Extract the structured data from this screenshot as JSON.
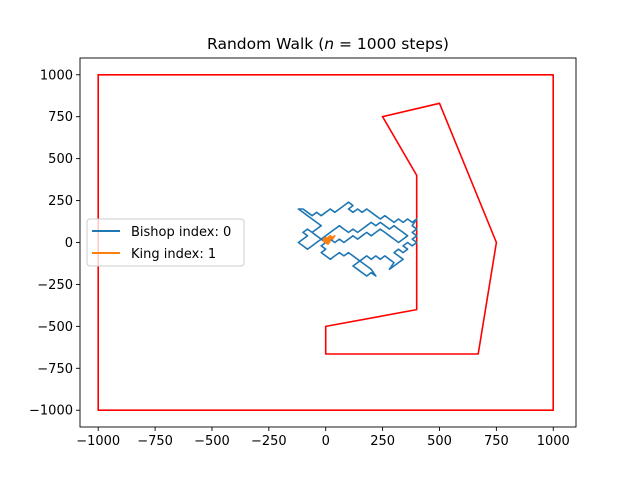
{
  "chart_data": {
    "type": "line",
    "title": "Random Walk (n = 1000 steps)",
    "title_parts": {
      "prefix": "Random Walk (",
      "var": "n",
      "eq": " = 1000 steps)"
    },
    "xlabel": "",
    "ylabel": "",
    "xlim": [
      -1080,
      1100
    ],
    "ylim": [
      -1100,
      1100
    ],
    "xticks": [
      -1000,
      -750,
      -500,
      -250,
      0,
      250,
      500,
      750,
      1000
    ],
    "yticks": [
      -1000,
      -750,
      -500,
      -250,
      0,
      250,
      500,
      750,
      1000
    ],
    "xtick_labels": [
      "−1000",
      "−750",
      "−500",
      "−250",
      "0",
      "250",
      "500",
      "750",
      "1000"
    ],
    "ytick_labels": [
      "−1000",
      "−750",
      "−500",
      "−250",
      "0",
      "250",
      "500",
      "750",
      "1000"
    ],
    "grid": false,
    "legend_position": "center-left",
    "colors": {
      "bishop": "#1f77b4",
      "king": "#ff7f0e",
      "boundary": "#ff0000"
    },
    "boundary": {
      "outer": [
        [
          -1000,
          1000
        ],
        [
          1000,
          1000
        ],
        [
          1000,
          -1000
        ],
        [
          -1000,
          -1000
        ],
        [
          -1000,
          1000
        ]
      ],
      "inner": [
        [
          250,
          750
        ],
        [
          500,
          830
        ],
        [
          750,
          0
        ],
        [
          670,
          -665
        ],
        [
          0,
          -665
        ],
        [
          0,
          -500
        ],
        [
          400,
          -400
        ],
        [
          400,
          400
        ],
        [
          250,
          750
        ]
      ]
    },
    "series": [
      {
        "name": "Bishop index: 0",
        "color": "#1f77b4",
        "points": [
          [
            0,
            0
          ],
          [
            -20,
            20
          ],
          [
            -40,
            40
          ],
          [
            -60,
            60
          ],
          [
            -40,
            80
          ],
          [
            -20,
            100
          ],
          [
            -40,
            120
          ],
          [
            -60,
            140
          ],
          [
            -80,
            160
          ],
          [
            -100,
            180
          ],
          [
            -120,
            200
          ],
          [
            -100,
            200
          ],
          [
            -80,
            180
          ],
          [
            -60,
            160
          ],
          [
            -40,
            180
          ],
          [
            -20,
            160
          ],
          [
            0,
            180
          ],
          [
            20,
            200
          ],
          [
            40,
            180
          ],
          [
            60,
            200
          ],
          [
            80,
            220
          ],
          [
            100,
            240
          ],
          [
            120,
            220
          ],
          [
            100,
            200
          ],
          [
            120,
            180
          ],
          [
            140,
            200
          ],
          [
            160,
            180
          ],
          [
            180,
            200
          ],
          [
            200,
            180
          ],
          [
            220,
            160
          ],
          [
            240,
            140
          ],
          [
            260,
            160
          ],
          [
            280,
            140
          ],
          [
            300,
            120
          ],
          [
            320,
            140
          ],
          [
            340,
            120
          ],
          [
            360,
            140
          ],
          [
            380,
            120
          ],
          [
            400,
            140
          ],
          [
            380,
            100
          ],
          [
            400,
            80
          ],
          [
            380,
            60
          ],
          [
            400,
            40
          ],
          [
            380,
            20
          ],
          [
            400,
            0
          ],
          [
            380,
            -20
          ],
          [
            360,
            0
          ],
          [
            340,
            -20
          ],
          [
            360,
            -40
          ],
          [
            340,
            -60
          ],
          [
            320,
            -40
          ],
          [
            300,
            -60
          ],
          [
            320,
            -80
          ],
          [
            340,
            -100
          ],
          [
            320,
            -120
          ],
          [
            300,
            -140
          ],
          [
            280,
            -160
          ],
          [
            300,
            -120
          ],
          [
            280,
            -100
          ],
          [
            260,
            -80
          ],
          [
            240,
            -100
          ],
          [
            220,
            -80
          ],
          [
            200,
            -100
          ],
          [
            180,
            -80
          ],
          [
            160,
            -100
          ],
          [
            140,
            -120
          ],
          [
            120,
            -140
          ],
          [
            140,
            -160
          ],
          [
            160,
            -180
          ],
          [
            180,
            -200
          ],
          [
            200,
            -180
          ],
          [
            220,
            -200
          ],
          [
            200,
            -160
          ],
          [
            180,
            -140
          ],
          [
            160,
            -120
          ],
          [
            140,
            -100
          ],
          [
            120,
            -80
          ],
          [
            100,
            -60
          ],
          [
            80,
            -80
          ],
          [
            60,
            -60
          ],
          [
            40,
            -80
          ],
          [
            20,
            -100
          ],
          [
            0,
            -80
          ],
          [
            -20,
            -60
          ],
          [
            0,
            -40
          ],
          [
            -20,
            -20
          ],
          [
            0,
            0
          ],
          [
            20,
            20
          ],
          [
            40,
            0
          ],
          [
            60,
            20
          ],
          [
            80,
            0
          ],
          [
            100,
            20
          ],
          [
            120,
            40
          ],
          [
            140,
            20
          ],
          [
            160,
            40
          ],
          [
            180,
            60
          ],
          [
            200,
            40
          ],
          [
            220,
            60
          ],
          [
            240,
            80
          ],
          [
            260,
            60
          ],
          [
            280,
            40
          ],
          [
            300,
            20
          ],
          [
            320,
            0
          ],
          [
            340,
            20
          ],
          [
            360,
            40
          ],
          [
            340,
            60
          ],
          [
            320,
            80
          ],
          [
            300,
            100
          ],
          [
            280,
            80
          ],
          [
            260,
            100
          ],
          [
            240,
            120
          ],
          [
            220,
            100
          ],
          [
            200,
            120
          ],
          [
            180,
            100
          ],
          [
            160,
            80
          ],
          [
            140,
            60
          ],
          [
            120,
            80
          ],
          [
            100,
            60
          ],
          [
            80,
            80
          ],
          [
            60,
            100
          ],
          [
            40,
            80
          ],
          [
            20,
            60
          ],
          [
            0,
            40
          ],
          [
            -20,
            20
          ],
          [
            -40,
            0
          ],
          [
            -60,
            -20
          ],
          [
            -80,
            -40
          ],
          [
            -100,
            -20
          ],
          [
            -120,
            0
          ],
          [
            -100,
            20
          ],
          [
            -80,
            40
          ],
          [
            -100,
            60
          ],
          [
            -80,
            80
          ],
          [
            -60,
            60
          ],
          [
            -40,
            40
          ],
          [
            -20,
            20
          ],
          [
            0,
            0
          ]
        ]
      },
      {
        "name": "King index: 1",
        "color": "#ff7f0e",
        "points": [
          [
            0,
            0
          ],
          [
            -10,
            10
          ],
          [
            0,
            20
          ],
          [
            10,
            10
          ],
          [
            20,
            20
          ],
          [
            10,
            30
          ],
          [
            20,
            40
          ],
          [
            30,
            30
          ],
          [
            40,
            40
          ],
          [
            30,
            20
          ],
          [
            20,
            30
          ],
          [
            10,
            20
          ],
          [
            0,
            30
          ],
          [
            -10,
            20
          ],
          [
            0,
            10
          ],
          [
            10,
            0
          ],
          [
            20,
            10
          ],
          [
            10,
            -10
          ],
          [
            0,
            0
          ]
        ]
      }
    ]
  }
}
